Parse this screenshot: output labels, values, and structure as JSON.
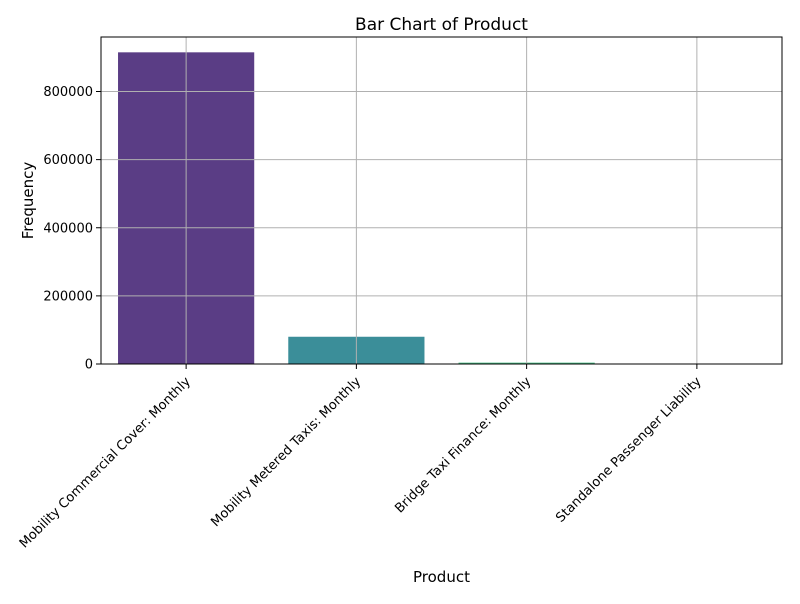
{
  "chart_data": {
    "type": "bar",
    "title": "Bar Chart of Product",
    "xlabel": "Product",
    "ylabel": "Frequency",
    "categories": [
      "Mobility Commercial Cover: Monthly",
      "Mobility Metered Taxis: Monthly",
      "Bridge Taxi Finance: Monthly",
      "Standalone Passenger Liability"
    ],
    "values": [
      915000,
      80000,
      4000,
      300
    ],
    "colors": [
      "#482878",
      "#26828e",
      "#35b779",
      "#90d743"
    ],
    "bar_opacity": 0.9,
    "ylim": [
      0,
      960000
    ],
    "yticks": [
      0,
      200000,
      400000,
      600000,
      800000
    ],
    "ytick_labels": [
      "0",
      "200000",
      "400000",
      "600000",
      "800000"
    ],
    "grid": true,
    "xtick_rotation_deg": 45
  }
}
